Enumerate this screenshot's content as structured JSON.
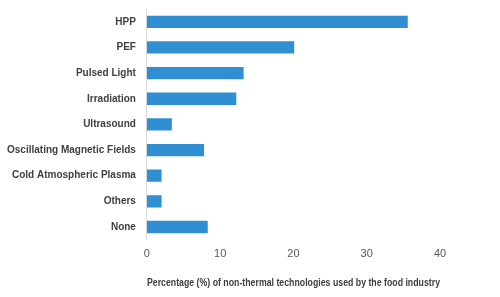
{
  "chart_data": {
    "type": "bar",
    "orientation": "horizontal",
    "x_label": "Percentage (%) of non-thermal technologies used by the food industry",
    "categories": [
      "HPP",
      "PEF",
      "Pulsed Light",
      "Irradiation",
      "Ultrasound",
      "Oscillating Magnetic Fields",
      "Cold Atmospheric Plasma",
      "Others",
      "None"
    ],
    "values": [
      35.6,
      20.1,
      13.2,
      12.2,
      3.4,
      7.8,
      2.0,
      2.0,
      8.3
    ],
    "color": "#2f8fd2",
    "xlim": [
      0,
      40
    ],
    "xticks": [
      0,
      10,
      20,
      30,
      40
    ],
    "grid": false
  }
}
